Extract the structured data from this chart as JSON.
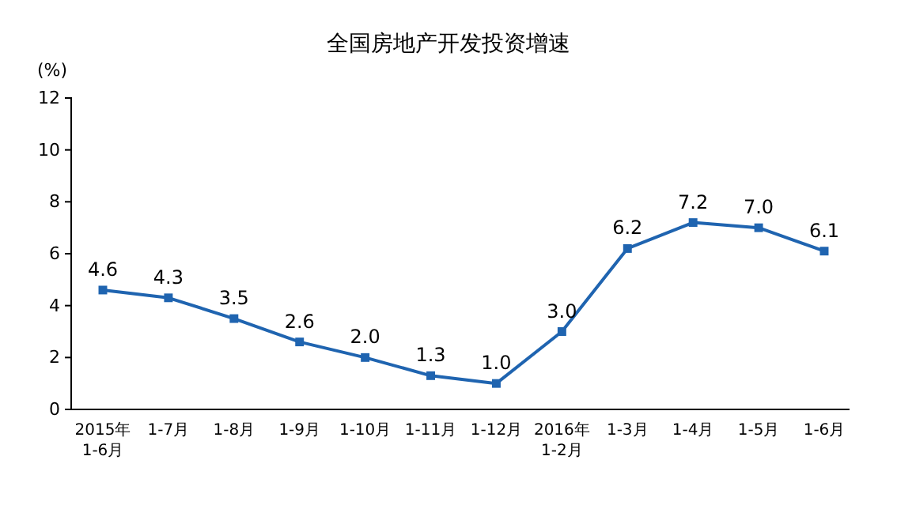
{
  "chart_data": {
    "type": "line",
    "title": "全国房地产开发投资增速",
    "ylabel": "(%)",
    "categories": [
      "2015年\n1-6月",
      "1-7月",
      "1-8月",
      "1-9月",
      "1-10月",
      "1-11月",
      "1-12月",
      "2016年\n1-2月",
      "1-3月",
      "1-4月",
      "1-5月",
      "1-6月"
    ],
    "series": [
      {
        "color": "#1f64b0",
        "values": [
          4.6,
          4.3,
          3.5,
          2.6,
          2.0,
          1.3,
          1.0,
          3.0,
          6.2,
          7.2,
          7.0,
          6.1
        ],
        "value_labels": [
          "4.6",
          "4.3",
          "3.5",
          "2.6",
          "2.0",
          "1.3",
          "1.0",
          "3.0",
          "6.2",
          "7.2",
          "7.0",
          "6.1"
        ]
      }
    ],
    "ylim": [
      0,
      12
    ],
    "yticks": [
      0,
      2,
      4,
      6,
      8,
      10,
      12
    ],
    "marker": "square",
    "line_style": "solid"
  }
}
